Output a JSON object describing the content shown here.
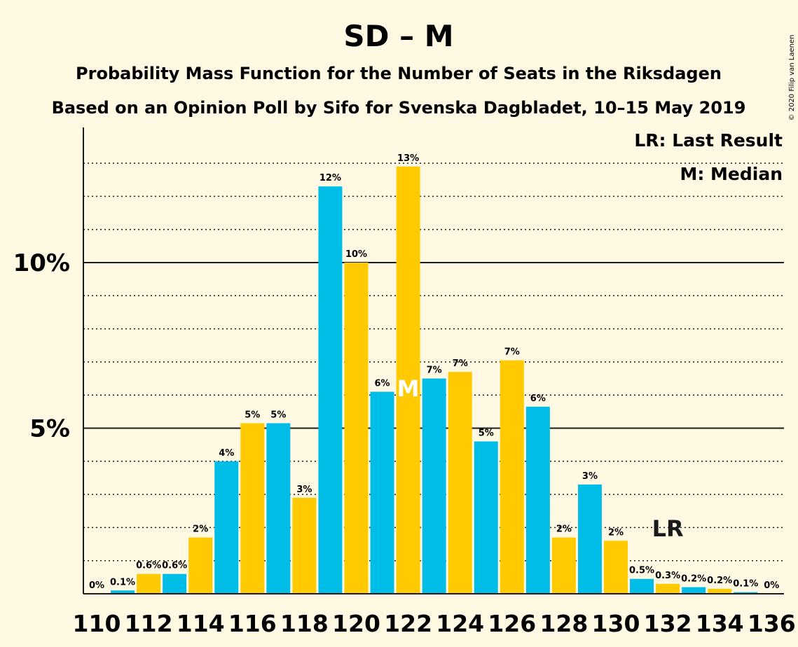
{
  "chart_data": {
    "type": "bar",
    "title": "SD – M",
    "subtitle_lines": [
      "Probability Mass Function for the Number of Seats in the Riksdagen",
      "Based on an Opinion Poll by Sifo for Svenska Dagbladet, 10–15 May 2019"
    ],
    "legend": [
      "LR: Last Result",
      "M: Median"
    ],
    "copyright": "© 2020 Filip van Laenen",
    "x": [
      110,
      111,
      112,
      113,
      114,
      115,
      116,
      117,
      118,
      119,
      120,
      121,
      122,
      123,
      124,
      125,
      126,
      127,
      128,
      129,
      130,
      131,
      132,
      133,
      134,
      135,
      136
    ],
    "x_tick_labels": [
      "110",
      "112",
      "114",
      "116",
      "118",
      "120",
      "122",
      "124",
      "126",
      "128",
      "130",
      "132",
      "134",
      "136"
    ],
    "values": [
      0,
      0.1,
      0.6,
      0.6,
      1.7,
      4.0,
      5.15,
      5.15,
      2.9,
      12.3,
      10.0,
      6.1,
      12.9,
      6.5,
      6.7,
      4.6,
      7.05,
      5.65,
      1.7,
      3.3,
      1.6,
      0.45,
      0.3,
      0.2,
      0.15,
      0.05,
      0
    ],
    "value_labels": [
      "0%",
      "0.1%",
      "0.6%",
      "0.6%",
      "2%",
      "4%",
      "5%",
      "5%",
      "3%",
      "12%",
      "10%",
      "6%",
      "13%",
      "7%",
      "7%",
      "5%",
      "7%",
      "6%",
      "2%",
      "3%",
      "2%",
      "0.5%",
      "0.3%",
      "0.2%",
      "0.2%",
      "0.1%",
      "0%"
    ],
    "y_tick_labels": [
      "5%",
      "10%"
    ],
    "y_tick_values": [
      5,
      10
    ],
    "ylim": [
      0,
      14
    ],
    "median": 122,
    "median_marker": "M",
    "last_result": 132,
    "last_result_marker": "LR",
    "colors": {
      "bar_a": "#00bde8",
      "bar_b": "#ffca00",
      "background": "#fff8e3",
      "text": "#1a1a1a"
    }
  }
}
